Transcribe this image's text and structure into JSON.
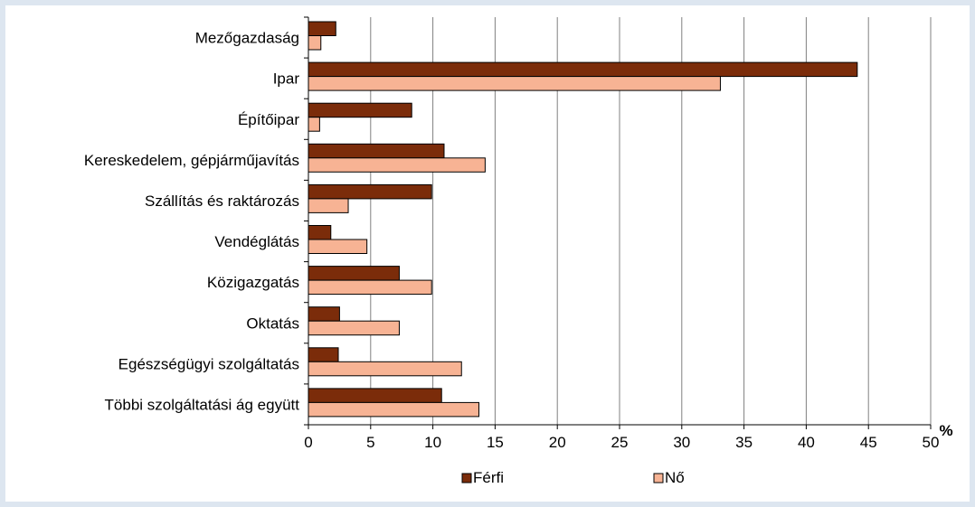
{
  "chart_data": {
    "type": "bar",
    "orientation": "horizontal",
    "categories": [
      "Mezőgazdaság",
      "Ipar",
      "Építőipar",
      "Kereskedelem, gépjárműjavítás",
      "Szállítás és raktározás",
      "Vendéglátás",
      "Közigazgatás",
      "Oktatás",
      "Egészségügyi szolgáltatás",
      "Többi szolgáltatási ág együtt"
    ],
    "series": [
      {
        "name": "Férfi",
        "color": "#7b2c0a",
        "values": [
          2.2,
          44.1,
          8.3,
          10.9,
          9.9,
          1.8,
          7.3,
          2.5,
          2.4,
          10.7
        ]
      },
      {
        "name": "Nő",
        "color": "#f7b394",
        "values": [
          1.0,
          33.1,
          0.9,
          14.2,
          3.2,
          4.7,
          9.9,
          7.3,
          12.3,
          13.7
        ]
      }
    ],
    "x_ticks": [
      0,
      5,
      10,
      15,
      20,
      25,
      30,
      35,
      40,
      45,
      50
    ],
    "xlim": [
      0,
      50
    ],
    "x_unit": "%",
    "grid": "vertical",
    "legend_position": "bottom"
  }
}
